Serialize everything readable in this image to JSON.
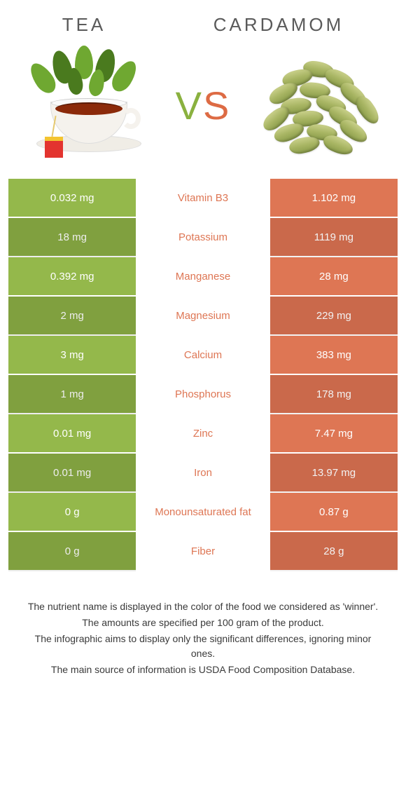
{
  "titles": {
    "left": "Tea",
    "right": "Cardamom"
  },
  "vs": {
    "v": "V",
    "s": "S"
  },
  "colors": {
    "left": "#94b84b",
    "right": "#de7654",
    "left_alt": "#8aac44",
    "right_alt": "#d96d4c"
  },
  "rows": [
    {
      "left": "0.032 mg",
      "label": "Vitamin B3",
      "right": "1.102 mg",
      "label_color": "#de7654"
    },
    {
      "left": "18 mg",
      "label": "Potassium",
      "right": "1119 mg",
      "label_color": "#de7654"
    },
    {
      "left": "0.392 mg",
      "label": "Manganese",
      "right": "28 mg",
      "label_color": "#de7654"
    },
    {
      "left": "2 mg",
      "label": "Magnesium",
      "right": "229 mg",
      "label_color": "#de7654"
    },
    {
      "left": "3 mg",
      "label": "Calcium",
      "right": "383 mg",
      "label_color": "#de7654"
    },
    {
      "left": "1 mg",
      "label": "Phosphorus",
      "right": "178 mg",
      "label_color": "#de7654"
    },
    {
      "left": "0.01 mg",
      "label": "Zinc",
      "right": "7.47 mg",
      "label_color": "#de7654"
    },
    {
      "left": "0.01 mg",
      "label": "Iron",
      "right": "13.97 mg",
      "label_color": "#de7654"
    },
    {
      "left": "0 g",
      "label": "Monounsaturated fat",
      "right": "0.87 g",
      "label_color": "#de7654"
    },
    {
      "left": "0 g",
      "label": "Fiber",
      "right": "28 g",
      "label_color": "#de7654"
    }
  ],
  "footnotes": [
    "The nutrient name is displayed in the color of the food we considered as 'winner'.",
    "The amounts are specified per 100 gram of the product.",
    "The infographic aims to display only the significant differences, ignoring minor ones.",
    "The main source of information is USDA Food Composition Database."
  ]
}
